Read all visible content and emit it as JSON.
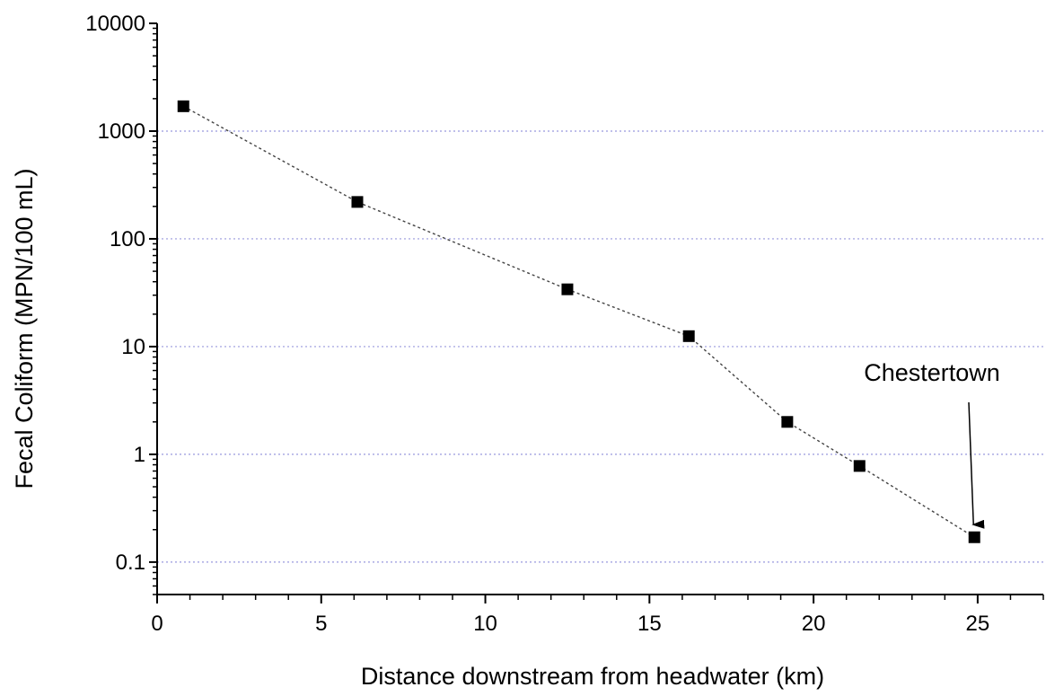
{
  "chart_data": {
    "type": "scatter",
    "connected": true,
    "line_style": "dashed",
    "marker": "square",
    "title": "",
    "xlabel": "Distance downstream from headwater (km)",
    "ylabel": "Fecal Coliform (MPN/100 mL)",
    "xlim": [
      0,
      27
    ],
    "ylim": [
      0.05,
      10000
    ],
    "yscale": "log",
    "xticks": [
      0,
      5,
      10,
      15,
      20,
      25
    ],
    "xtick_labels": [
      "0",
      "5",
      "10",
      "15",
      "20",
      "25"
    ],
    "yticks": [
      0.1,
      1,
      10,
      100,
      1000,
      10000
    ],
    "ytick_labels": [
      "0.1",
      "1",
      "10",
      "100",
      "1000",
      "10000"
    ],
    "grid": "horizontal dotted",
    "x": [
      0.8,
      6.1,
      12.5,
      16.2,
      19.2,
      21.4,
      24.9
    ],
    "y": [
      1700,
      220,
      34,
      12.5,
      2.0,
      0.78,
      0.17
    ],
    "annotations": [
      {
        "text": "Chestertown",
        "points_to": {
          "x": 24.9,
          "y": 0.17
        }
      }
    ],
    "colors": {
      "marker": "#000000",
      "line": "#444444",
      "grid": "#9999dd"
    }
  }
}
